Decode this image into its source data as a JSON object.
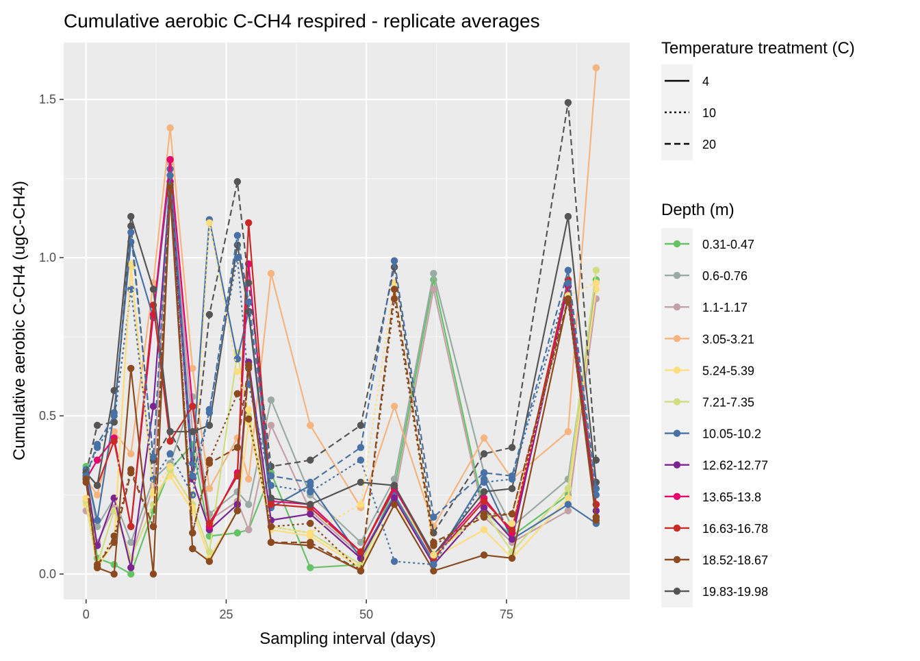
{
  "chart_data": {
    "type": "line",
    "title": "Cumulative aerobic C-CH4 respired - replicate averages",
    "xlabel": "Sampling interval (days)",
    "ylabel": "Cumulative aerobic C-CH4 (ugC-CH4)",
    "xlim": [
      -4,
      97
    ],
    "ylim": [
      -0.08,
      1.68
    ],
    "x_ticks": [
      0,
      25,
      50,
      75
    ],
    "y_ticks": [
      0.0,
      0.5,
      1.0,
      1.5
    ],
    "x_tick_labels": [
      "0",
      "25",
      "50",
      "75"
    ],
    "y_tick_labels": [
      "0.0",
      "0.5",
      "1.0",
      "1.5"
    ],
    "grid": true,
    "legend_placement": "right",
    "legend_linetype": {
      "title": "Temperature treatment (C)",
      "entries": [
        {
          "label": "4",
          "dash": "solid"
        },
        {
          "label": "10",
          "dash": "dotted"
        },
        {
          "label": "20",
          "dash": "dashed"
        }
      ]
    },
    "legend_color": {
      "title": "Depth (m)",
      "entries": [
        {
          "label": "0.31-0.47",
          "color": "#66c266"
        },
        {
          "label": "0.6-0.76",
          "color": "#9aaba6"
        },
        {
          "label": "1.1-1.17",
          "color": "#c4a0a8"
        },
        {
          "label": "3.05-3.21",
          "color": "#f6b47f"
        },
        {
          "label": "5.24-5.39",
          "color": "#fddd80"
        },
        {
          "label": "7.21-7.35",
          "color": "#d1de80"
        },
        {
          "label": "10.05-10.2",
          "color": "#4872a6"
        },
        {
          "label": "12.62-12.77",
          "color": "#7b2390"
        },
        {
          "label": "13.65-13.8",
          "color": "#e4066e"
        },
        {
          "label": "16.63-16.78",
          "color": "#c82a26"
        },
        {
          "label": "18.52-18.67",
          "color": "#8b4a20"
        },
        {
          "label": "19.83-19.98",
          "color": "#555555"
        }
      ]
    },
    "x": [
      0,
      2,
      5,
      8,
      12,
      15,
      19,
      22,
      27,
      29,
      33,
      40,
      49,
      55,
      62,
      71,
      76,
      86,
      91
    ],
    "series": [
      {
        "depth": "0.31-0.47",
        "temp": "4",
        "values": [
          0.34,
          0.05,
          0.03,
          0.0,
          0.2,
          0.33,
          0.41,
          0.12,
          0.13,
          0.14,
          0.32,
          0.02,
          0.03,
          0.27,
          0.93,
          0.2,
          0.12,
          0.25,
          0.93
        ]
      },
      {
        "depth": "0.6-0.76",
        "temp": "4",
        "values": [
          0.33,
          0.15,
          0.24,
          0.1,
          0.3,
          0.35,
          0.56,
          0.19,
          0.26,
          0.22,
          0.55,
          0.25,
          0.1,
          0.3,
          0.95,
          0.32,
          0.15,
          0.3,
          0.92
        ]
      },
      {
        "depth": "1.1-1.17",
        "temp": "4",
        "values": [
          0.2,
          0.1,
          0.21,
          0.05,
          0.28,
          1.3,
          0.45,
          0.17,
          0.23,
          0.14,
          0.47,
          0.2,
          0.06,
          0.24,
          0.9,
          0.18,
          0.1,
          0.2,
          0.87
        ]
      },
      {
        "depth": "3.05-3.21",
        "temp": "4",
        "values": [
          0.3,
          0.25,
          0.45,
          0.38,
          0.92,
          1.41,
          0.65,
          0.27,
          0.43,
          0.3,
          0.95,
          0.47,
          0.21,
          0.53,
          0.15,
          0.43,
          0.3,
          0.45,
          1.6
        ]
      },
      {
        "depth": "5.24-5.39",
        "temp": "4",
        "values": [
          0.22,
          0.02,
          0.1,
          0.97,
          0.25,
          0.31,
          0.2,
          0.05,
          0.2,
          0.48,
          0.14,
          0.12,
          0.02,
          0.22,
          0.05,
          0.14,
          0.05,
          0.24,
          0.9
        ]
      },
      {
        "depth": "7.21-7.35",
        "temp": "4",
        "values": [
          0.23,
          0.03,
          0.2,
          0.05,
          0.22,
          0.33,
          0.22,
          0.07,
          0.7,
          0.5,
          0.15,
          0.13,
          0.03,
          0.25,
          0.06,
          0.2,
          0.07,
          0.27,
          0.96
        ]
      },
      {
        "depth": "10.05-10.2",
        "temp": "4",
        "values": [
          0.33,
          0.17,
          0.51,
          1.05,
          0.81,
          1.28,
          0.35,
          1.12,
          0.68,
          0.83,
          0.21,
          0.28,
          0.05,
          0.25,
          0.04,
          0.3,
          0.11,
          0.22,
          0.16
        ]
      },
      {
        "depth": "12.62-12.77",
        "temp": "4",
        "values": [
          0.31,
          0.09,
          0.24,
          0.02,
          0.53,
          1.24,
          0.3,
          0.14,
          0.22,
          0.67,
          0.17,
          0.19,
          0.05,
          0.24,
          0.03,
          0.21,
          0.11,
          0.91,
          0.2
        ]
      },
      {
        "depth": "13.65-13.8",
        "temp": "4",
        "values": [
          0.3,
          0.36,
          0.43,
          0.15,
          0.82,
          1.31,
          0.53,
          0.15,
          0.32,
          0.98,
          0.23,
          0.22,
          0.07,
          0.27,
          0.06,
          0.24,
          0.13,
          0.92,
          0.22
        ]
      },
      {
        "depth": "16.63-16.78",
        "temp": "4",
        "values": [
          0.32,
          0.28,
          0.42,
          0.15,
          0.85,
          0.42,
          0.53,
          0.16,
          0.31,
          1.11,
          0.22,
          0.21,
          0.07,
          0.28,
          0.05,
          0.23,
          0.14,
          0.93,
          0.22
        ]
      },
      {
        "depth": "18.52-18.67",
        "temp": "4",
        "values": [
          0.29,
          0.02,
          0.0,
          0.65,
          0.0,
          1.2,
          0.08,
          0.04,
          0.2,
          0.65,
          0.1,
          0.09,
          0.01,
          0.22,
          0.01,
          0.06,
          0.05,
          0.87,
          0.17
        ]
      },
      {
        "depth": "19.83-19.98",
        "temp": "4",
        "values": [
          0.32,
          0.28,
          0.58,
          1.13,
          0.9,
          0.45,
          0.45,
          0.47,
          1.04,
          0.83,
          0.24,
          0.22,
          0.29,
          0.28,
          0.06,
          0.26,
          0.27,
          1.13,
          0.29
        ]
      },
      {
        "depth": "10.05-10.2",
        "temp": "10",
        "values": [
          0.31,
          0.4,
          0.48,
          0.9,
          0.3,
          0.38,
          0.25,
          0.52,
          1.0,
          0.6,
          0.28,
          0.26,
          0.36,
          0.04,
          0.03,
          0.29,
          0.3,
          0.92,
          0.25
        ]
      },
      {
        "depth": "5.24-5.39",
        "temp": "10",
        "values": [
          0.24,
          0.03,
          0.12,
          0.98,
          0.26,
          0.34,
          0.21,
          1.11,
          0.64,
          0.52,
          0.15,
          0.13,
          0.22,
          0.92,
          0.06,
          0.19,
          0.16,
          0.88,
          0.92
        ]
      },
      {
        "depth": "18.52-18.67",
        "temp": "10",
        "values": [
          0.3,
          0.02,
          0.12,
          0.33,
          0.15,
          1.23,
          0.13,
          0.36,
          0.57,
          0.49,
          0.15,
          0.16,
          0.01,
          0.87,
          0.09,
          0.19,
          0.19,
          0.86,
          0.18
        ]
      },
      {
        "depth": "19.83-19.98",
        "temp": "20",
        "values": [
          0.32,
          0.47,
          0.48,
          1.1,
          0.36,
          0.45,
          0.31,
          0.82,
          1.24,
          0.92,
          0.34,
          0.36,
          0.47,
          0.97,
          0.13,
          0.38,
          0.4,
          1.49,
          0.36
        ]
      },
      {
        "depth": "10.05-10.2",
        "temp": "20",
        "values": [
          0.31,
          0.41,
          0.5,
          1.08,
          0.37,
          1.26,
          0.31,
          0.51,
          1.07,
          0.86,
          0.31,
          0.29,
          0.4,
          0.99,
          0.18,
          0.32,
          0.31,
          0.96,
          0.27
        ]
      },
      {
        "depth": "18.52-18.67",
        "temp": "20",
        "values": [
          0.3,
          0.03,
          0.1,
          0.32,
          0.15,
          1.22,
          0.13,
          0.35,
          0.4,
          0.66,
          0.1,
          0.1,
          0.01,
          0.9,
          0.1,
          0.18,
          0.19,
          0.87,
          0.18
        ]
      }
    ]
  }
}
